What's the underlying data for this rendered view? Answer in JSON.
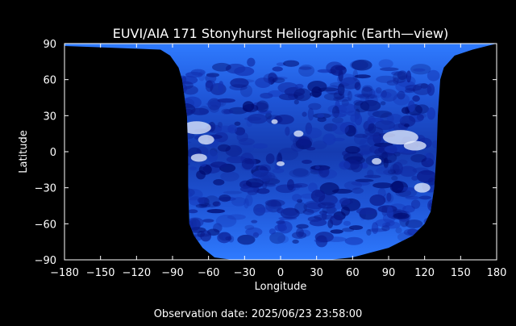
{
  "chart_data": {
    "type": "heatmap",
    "title": "EUVI/AIA 171 Stonyhurst Heliographic (Earth—view)",
    "xlabel": "Longitude",
    "ylabel": "Latitude",
    "xlim": [
      -180,
      180
    ],
    "ylim": [
      -90,
      90
    ],
    "x_ticks": [
      -180,
      -150,
      -120,
      -90,
      -60,
      -30,
      0,
      30,
      60,
      90,
      120,
      150,
      180
    ],
    "y_ticks": [
      -90,
      -60,
      -30,
      0,
      30,
      60,
      90
    ],
    "x_tick_labels": [
      "−180",
      "−150",
      "−120",
      "−90",
      "−60",
      "−30",
      "0",
      "30",
      "60",
      "90",
      "120",
      "150",
      "180"
    ],
    "y_tick_labels": [
      "−90",
      "−60",
      "−30",
      "0",
      "30",
      "60",
      "90"
    ],
    "coverage": {
      "left_edge_lon": [
        [
          88,
          -180
        ],
        [
          85,
          -100
        ],
        [
          80,
          -92
        ],
        [
          70,
          -85
        ],
        [
          60,
          -82
        ],
        [
          45,
          -80
        ],
        [
          30,
          -78
        ],
        [
          0,
          -77
        ],
        [
          -30,
          -77
        ],
        [
          -60,
          -76
        ],
        [
          -70,
          -72
        ],
        [
          -80,
          -65
        ],
        [
          -88,
          -55
        ],
        [
          -90,
          -40
        ]
      ],
      "right_edge_lon": [
        [
          90,
          180
        ],
        [
          85,
          160
        ],
        [
          80,
          145
        ],
        [
          70,
          136
        ],
        [
          60,
          133
        ],
        [
          45,
          132
        ],
        [
          30,
          131
        ],
        [
          0,
          130
        ],
        [
          -30,
          128
        ],
        [
          -50,
          125
        ],
        [
          -60,
          120
        ],
        [
          -70,
          110
        ],
        [
          -80,
          90
        ],
        [
          -88,
          60
        ],
        [
          -90,
          40
        ]
      ]
    },
    "colors": {
      "background": "#000000",
      "low": "#000a6e",
      "mid": "#1c5be0",
      "high": "#ffffff",
      "axes": "#ffffff"
    },
    "grid": false,
    "colormap": "blue"
  },
  "footer": {
    "observation": "Observation date: 2025/06/23 23:58:00"
  }
}
